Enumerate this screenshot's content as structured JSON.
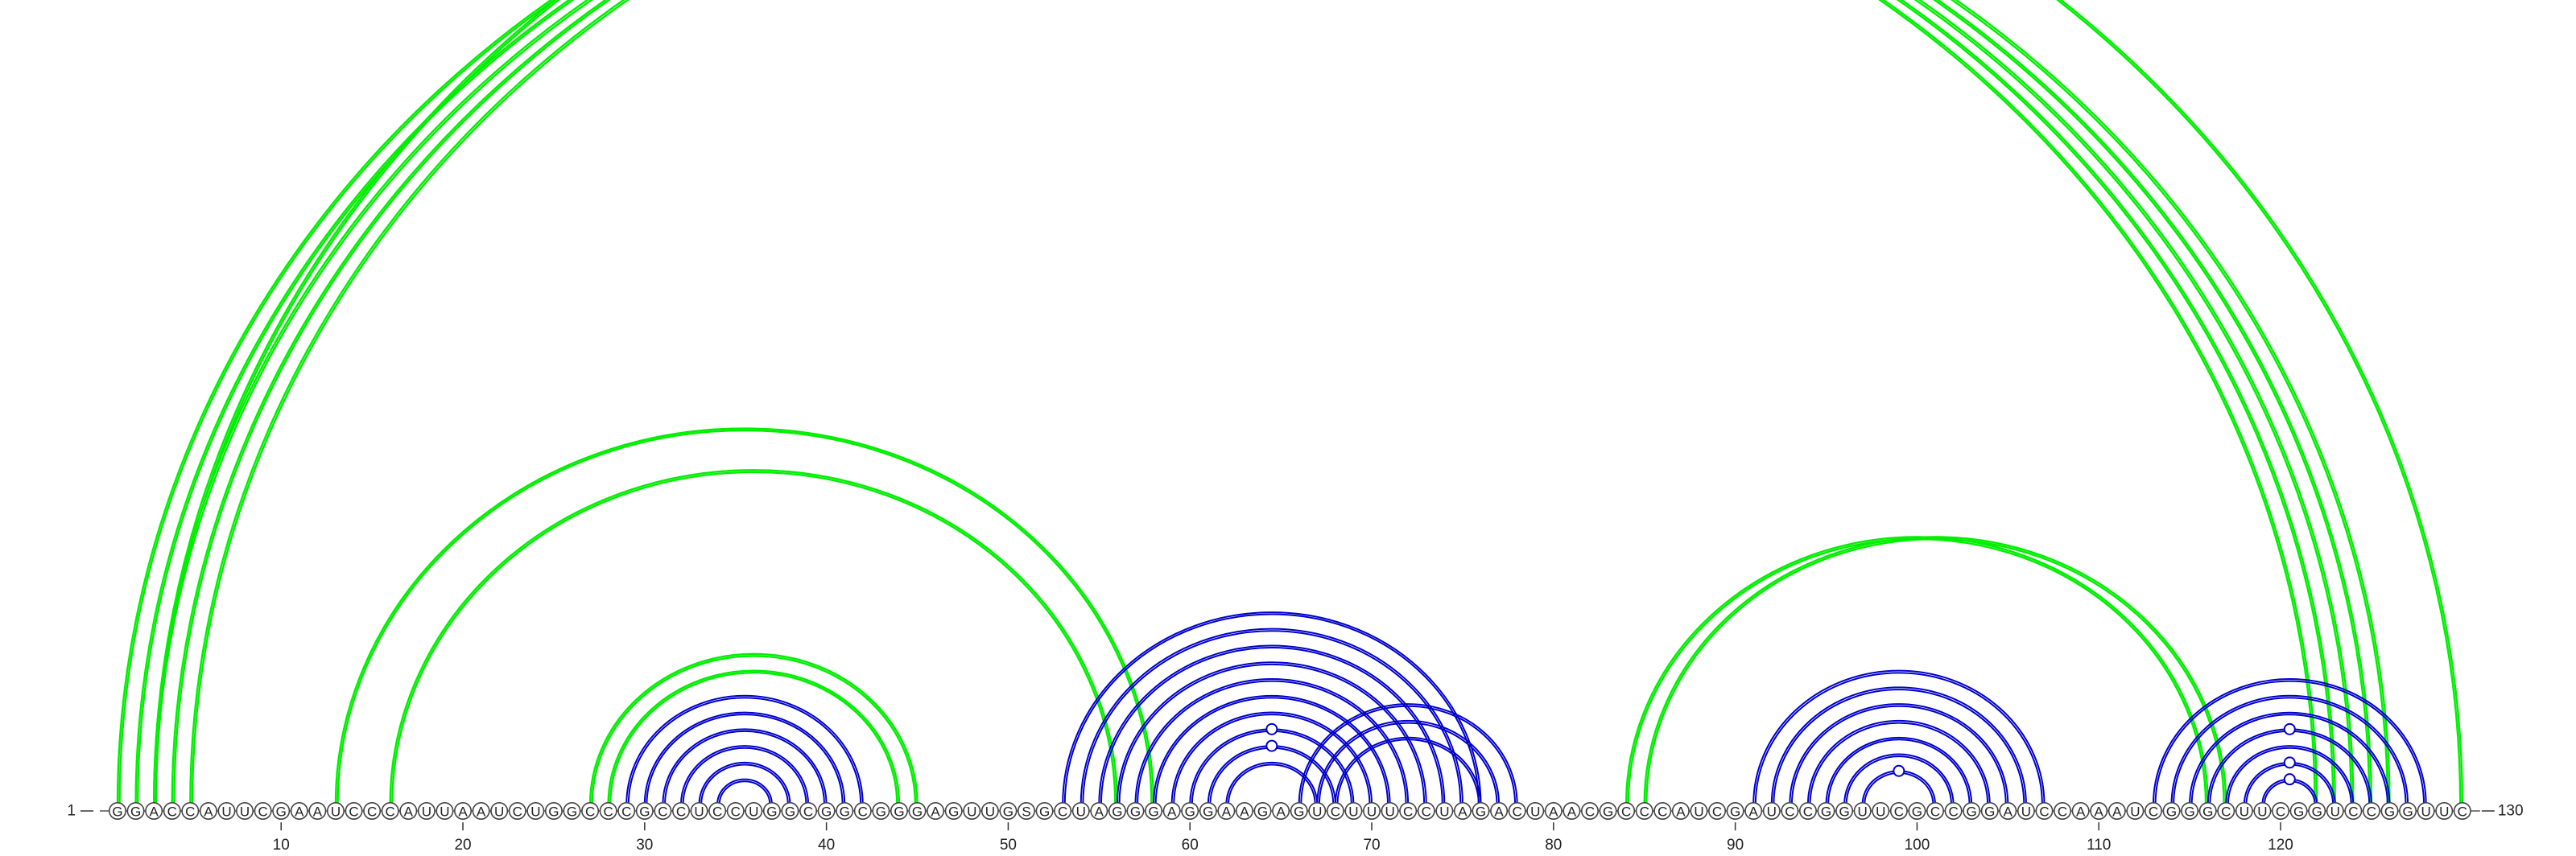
{
  "sequence": "GGACCAUUCGAAUCCCAUUAAUCUGGCCCGCCUCCUGGCGGCGGGAGUUGSGCUAGGGAGGAAGAGUCUUUCCUAGACUAACGCCCAUCGAUCCGGUUCGCCGGAUCCAAAUCGGGCUUCGGUCCGGUUC",
  "start_label": "1",
  "end_label": "130",
  "tick_labels": [
    "10",
    "20",
    "30",
    "40",
    "50",
    "60",
    "70",
    "80",
    "90",
    "100",
    "110",
    "120"
  ],
  "colors": {
    "green": "#00ee00",
    "blue": "#0000cc"
  },
  "arc_groups": [
    {
      "name": "outer-long-helix",
      "color": "green",
      "pairs": [
        [
          1,
          122
        ],
        [
          2,
          123
        ],
        [
          3,
          124
        ],
        [
          4,
          125
        ],
        [
          5,
          126
        ]
      ]
    },
    {
      "name": "outer-long-single",
      "color": "green",
      "pairs": [
        [
          3,
          130
        ]
      ]
    },
    {
      "name": "mid-left-helix-a",
      "color": "green",
      "pairs": [
        [
          13,
          58
        ]
      ]
    },
    {
      "name": "mid-left-helix-b",
      "color": "green",
      "pairs": [
        [
          16,
          56
        ]
      ]
    },
    {
      "name": "left-inner-green",
      "color": "green",
      "pairs": [
        [
          27,
          45
        ],
        [
          28,
          44
        ]
      ]
    },
    {
      "name": "left-inner-blue",
      "color": "blue",
      "pairs": [
        [
          29,
          42
        ],
        [
          30,
          41
        ],
        [
          31,
          40
        ],
        [
          32,
          39
        ],
        [
          33,
          38
        ],
        [
          34,
          37
        ]
      ]
    },
    {
      "name": "center-blue-nest",
      "color": "blue",
      "pairs": [
        [
          53,
          76
        ],
        [
          54,
          75
        ],
        [
          55,
          74
        ],
        [
          56,
          73
        ],
        [
          57,
          72
        ],
        [
          58,
          71
        ],
        [
          59,
          70
        ],
        [
          60,
          69
        ],
        [
          61,
          68
        ],
        [
          62,
          67
        ]
      ]
    },
    {
      "name": "center-blue-right",
      "color": "blue",
      "pairs": [
        [
          66,
          78
        ],
        [
          67,
          77
        ],
        [
          68,
          76
        ]
      ]
    },
    {
      "name": "right-green-helix",
      "color": "green",
      "pairs": [
        [
          84,
          116
        ],
        [
          85,
          117
        ]
      ]
    },
    {
      "name": "right-blue-nest",
      "color": "blue",
      "pairs": [
        [
          91,
          107
        ],
        [
          92,
          106
        ],
        [
          93,
          105
        ],
        [
          94,
          104
        ],
        [
          95,
          103
        ],
        [
          96,
          102
        ],
        [
          97,
          101
        ]
      ]
    },
    {
      "name": "far-right-blue-nest",
      "color": "blue",
      "pairs": [
        [
          113,
          128
        ],
        [
          114,
          127
        ],
        [
          115,
          126
        ],
        [
          116,
          125
        ],
        [
          117,
          124
        ],
        [
          118,
          123
        ],
        [
          119,
          122
        ]
      ]
    }
  ],
  "markers": [
    {
      "arc": [
        3,
        130
      ],
      "color": "green"
    },
    {
      "arc": [
        60,
        69
      ],
      "color": "blue"
    },
    {
      "arc": [
        61,
        68
      ],
      "color": "blue"
    },
    {
      "arc": [
        97,
        101
      ],
      "color": "blue"
    },
    {
      "arc": [
        116,
        125
      ],
      "color": "blue"
    },
    {
      "arc": [
        118,
        123
      ],
      "color": "blue"
    },
    {
      "arc": [
        119,
        122
      ],
      "color": "blue"
    }
  ]
}
